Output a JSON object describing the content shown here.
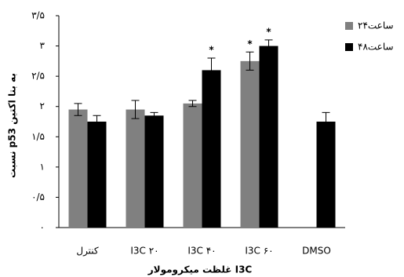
{
  "chart_data": {
    "type": "bar",
    "y_label": "نسبت p53 به بتا اکتین",
    "x_label": "غلظت میکرومولار I3C",
    "categories": [
      "کنترل",
      "I3C ۲۰",
      "I3C ۴۰",
      "I3C ۶۰",
      "DMSO"
    ],
    "series": [
      {
        "name": "۲۴ساعت",
        "color": "#808080",
        "values": [
          1.95,
          1.95,
          2.05,
          2.75,
          null
        ],
        "errors": [
          0.1,
          0.15,
          0.05,
          0.15,
          null
        ]
      },
      {
        "name": "۴۸ساعت",
        "color": "#000000",
        "values": [
          1.75,
          1.85,
          2.6,
          3.0,
          1.75
        ],
        "errors": [
          0.1,
          0.05,
          0.2,
          0.1,
          0.15
        ]
      }
    ],
    "annotations": [
      {
        "text": "*",
        "series": 1,
        "index": 2
      },
      {
        "text": "*",
        "series": 0,
        "index": 3
      },
      {
        "text": "*",
        "series": 1,
        "index": 3
      }
    ],
    "ylim": [
      0,
      3.5
    ],
    "yticks": [
      {
        "value": 0,
        "label": "۰"
      },
      {
        "value": 0.5,
        "label": "۰/۵"
      },
      {
        "value": 1,
        "label": "۱"
      },
      {
        "value": 1.5,
        "label": "۱/۵"
      },
      {
        "value": 2,
        "label": "۲"
      },
      {
        "value": 2.5,
        "label": "۲/۵"
      },
      {
        "value": 3,
        "label": "۳"
      },
      {
        "value": 3.5,
        "label": "۳/۵"
      }
    ],
    "legend": "top-right"
  }
}
